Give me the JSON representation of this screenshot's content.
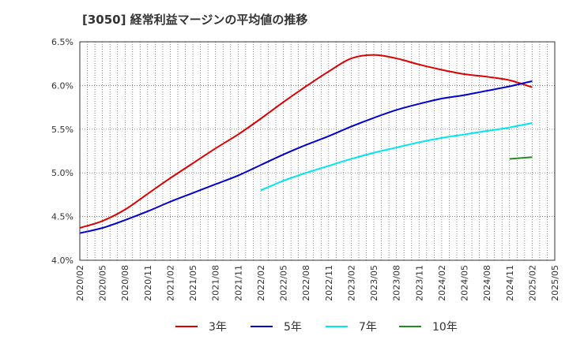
{
  "chart_data": {
    "type": "line",
    "title": "[3050]  経常利益マージンの平均値の推移",
    "xlabel": "",
    "ylabel": "",
    "ylim": [
      4.0,
      6.5
    ],
    "yticks": [
      "4.0%",
      "4.5%",
      "5.0%",
      "5.5%",
      "6.0%",
      "6.5%"
    ],
    "x_ticks": [
      "2020/02",
      "2020/05",
      "2020/08",
      "2020/11",
      "2021/02",
      "2021/05",
      "2021/08",
      "2021/11",
      "2022/02",
      "2022/05",
      "2022/08",
      "2022/11",
      "2023/02",
      "2023/05",
      "2023/08",
      "2023/11",
      "2024/02",
      "2024/05",
      "2024/08",
      "2024/11",
      "2025/02",
      "2025/05"
    ],
    "grid": true,
    "legend_position": "bottom",
    "series": [
      {
        "name": "3年",
        "color": "#dd0000",
        "x": [
          "2020/02",
          "2020/05",
          "2020/08",
          "2020/11",
          "2021/02",
          "2021/05",
          "2021/08",
          "2021/11",
          "2022/02",
          "2022/05",
          "2022/08",
          "2022/11",
          "2023/02",
          "2023/05",
          "2023/08",
          "2023/11",
          "2024/02",
          "2024/05",
          "2024/08",
          "2024/11",
          "2025/02"
        ],
        "values": [
          4.37,
          4.45,
          4.58,
          4.76,
          4.94,
          5.11,
          5.28,
          5.44,
          5.62,
          5.81,
          5.99,
          6.16,
          6.31,
          6.35,
          6.31,
          6.24,
          6.18,
          6.13,
          6.1,
          6.06,
          5.98
        ]
      },
      {
        "name": "5年",
        "color": "#0000cc",
        "x": [
          "2020/02",
          "2020/05",
          "2020/08",
          "2020/11",
          "2021/02",
          "2021/05",
          "2021/08",
          "2021/11",
          "2022/02",
          "2022/05",
          "2022/08",
          "2022/11",
          "2023/02",
          "2023/05",
          "2023/08",
          "2023/11",
          "2024/02",
          "2024/05",
          "2024/08",
          "2024/11",
          "2025/02"
        ],
        "values": [
          4.31,
          4.37,
          4.46,
          4.56,
          4.67,
          4.77,
          4.87,
          4.97,
          5.09,
          5.21,
          5.32,
          5.42,
          5.53,
          5.63,
          5.72,
          5.79,
          5.85,
          5.89,
          5.94,
          5.99,
          6.05
        ]
      },
      {
        "name": "7年",
        "color": "#00e5ee",
        "x": [
          "2022/02",
          "2022/05",
          "2022/08",
          "2022/11",
          "2023/02",
          "2023/05",
          "2023/08",
          "2023/11",
          "2024/02",
          "2024/05",
          "2024/08",
          "2024/11",
          "2025/02"
        ],
        "values": [
          4.8,
          4.91,
          5.0,
          5.08,
          5.16,
          5.23,
          5.29,
          5.35,
          5.4,
          5.44,
          5.48,
          5.52,
          5.57
        ]
      },
      {
        "name": "10年",
        "color": "#228b22",
        "x": [
          "2024/11",
          "2025/02"
        ],
        "values": [
          5.16,
          5.18
        ]
      }
    ]
  }
}
